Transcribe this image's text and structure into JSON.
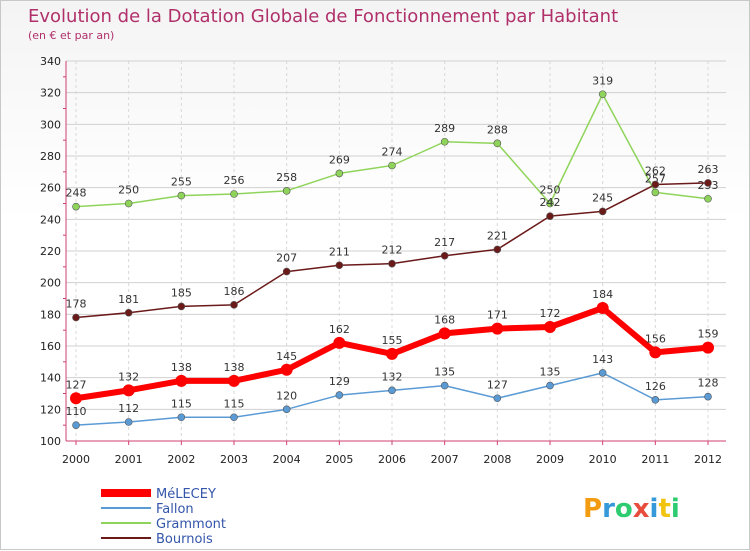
{
  "chart_data": {
    "type": "line",
    "title": "Evolution de la Dotation Globale de Fonctionnement par Habitant",
    "subtitle": "(en € et par an)",
    "categories": [
      "2000",
      "2001",
      "2002",
      "2003",
      "2004",
      "2005",
      "2006",
      "2007",
      "2008",
      "2009",
      "2010",
      "2011",
      "2012"
    ],
    "ylim": [
      100,
      340
    ],
    "yticks": [
      100,
      120,
      140,
      160,
      180,
      200,
      220,
      240,
      260,
      280,
      300,
      320,
      340
    ],
    "grid": true,
    "legend_position": "bottom-left",
    "series": [
      {
        "name": "MéLECEY",
        "color": "#ff0000",
        "values": [
          127,
          132,
          138,
          138,
          145,
          162,
          155,
          168,
          171,
          172,
          184,
          156,
          159
        ]
      },
      {
        "name": "Fallon",
        "color": "#5b9bd5",
        "values": [
          110,
          112,
          115,
          115,
          120,
          129,
          132,
          135,
          127,
          135,
          143,
          126,
          128
        ]
      },
      {
        "name": "Grammont",
        "color": "#8fd45a",
        "values": [
          248,
          250,
          255,
          256,
          258,
          269,
          274,
          289,
          288,
          250,
          319,
          257,
          253
        ]
      },
      {
        "name": "Bournois",
        "color": "#6b1a1a",
        "values": [
          178,
          181,
          185,
          186,
          207,
          211,
          212,
          217,
          221,
          242,
          245,
          262,
          263
        ]
      }
    ]
  },
  "logo": {
    "letters": [
      "P",
      "r",
      "o",
      "x",
      "i",
      "t",
      "i"
    ],
    "colors": [
      "#f39c12",
      "#3498db",
      "#2ecc71",
      "#e74c3c",
      "#3498db",
      "#f1c40f",
      "#2ecc71"
    ]
  }
}
